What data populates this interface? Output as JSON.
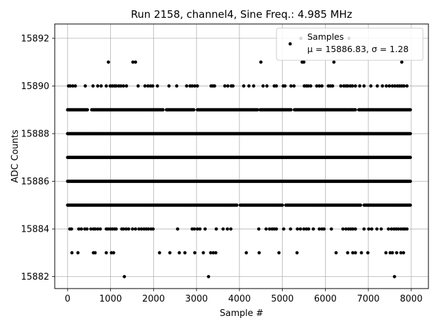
{
  "chart_data": {
    "type": "scatter",
    "title": "Run 2158, channel4, Sine Freq.: 4.985 MHz",
    "xlabel": "Sample #",
    "ylabel": "ADC Counts",
    "xlim": [
      -300,
      8400
    ],
    "ylim": [
      15881.5,
      15892.6
    ],
    "xticks": [
      0,
      1000,
      2000,
      3000,
      4000,
      5000,
      6000,
      7000,
      8000
    ],
    "yticks": [
      15882,
      15884,
      15886,
      15888,
      15890,
      15892
    ],
    "grid": true,
    "legend": {
      "placement": "top-right",
      "entries": [
        "Samples",
        "μ = 15886.83, σ = 1.28"
      ]
    },
    "series": [
      {
        "name": "Samples",
        "marker_color": "#000000",
        "levels": [
          {
            "y": 15892,
            "x": [
              5430,
              6550
            ]
          },
          {
            "y": 15891,
            "x": [
              950,
              1520,
              1580,
              4500,
              5460,
              5500,
              6200,
              7780
            ]
          },
          {
            "y": 15890,
            "x": [
              20,
              60,
              120,
              180,
              410,
              590,
              700,
              780,
              900,
              990,
              1040,
              1090,
              1130,
              1190,
              1240,
              1300,
              1370,
              1640,
              1800,
              1870,
              1930,
              1980,
              2090,
              2360,
              2540,
              2770,
              2850,
              2900,
              2960,
              3020,
              3340,
              3380,
              3420,
              3660,
              3730,
              3810,
              3850,
              4100,
              4220,
              4330,
              4550,
              4640,
              4810,
              4860,
              5020,
              5060,
              5200,
              5270,
              5510,
              5560,
              5600,
              5660,
              5800,
              5860,
              5920,
              6070,
              6120,
              6170,
              6360,
              6430,
              6480,
              6520,
              6580,
              6630,
              6700,
              6800,
              6900,
              7060,
              7210,
              7330,
              7420,
              7490,
              7560,
              7620,
              7680,
              7730,
              7780,
              7830,
              7900
            ]
          },
          {
            "y": 15884,
            "x": [
              50,
              90,
              260,
              320,
              400,
              450,
              540,
              600,
              640,
              700,
              760,
              900,
              940,
              990,
              1040,
              1090,
              1130,
              1260,
              1300,
              1360,
              1420,
              1510,
              1580,
              1660,
              1720,
              1780,
              1830,
              1880,
              1940,
              1990,
              2560,
              2900,
              2950,
              3020,
              3080,
              3200,
              3460,
              3620,
              3720,
              3800,
              4450,
              4620,
              4700,
              4760,
              4810,
              4860,
              5030,
              5190,
              5350,
              5420,
              5500,
              5560,
              5610,
              5720,
              5860,
              5920,
              5970,
              6140,
              6410,
              6480,
              6540,
              6590,
              6640,
              6700,
              6900,
              7010,
              7080,
              7200,
              7300,
              7470,
              7540,
              7600,
              7650,
              7700,
              7760,
              7810,
              7850,
              7900
            ]
          },
          {
            "y": 15883,
            "x": [
              100,
              240,
              600,
              640,
              900,
              1020,
              1070,
              2140,
              2380,
              2600,
              2730,
              2960,
              3160,
              3330,
              3390,
              3450,
              4160,
              4460,
              4920,
              5340,
              6250,
              6520,
              6640,
              6700,
              6840,
              6990,
              7410,
              7510,
              7560,
              7660,
              7760,
              7820
            ]
          },
          {
            "y": 15882,
            "x": [
              1320,
              3280,
              7610
            ]
          }
        ],
        "dense_levels": [
          {
            "y": 15889,
            "x_range": [
              0,
              7999
            ],
            "gaps": [
              [
                470,
                550
              ],
              [
                2230,
                2290
              ],
              [
                2950,
                3000
              ],
              [
                4430,
                4470
              ],
              [
                5220,
                5270
              ],
              [
                6720,
                6770
              ]
            ]
          },
          {
            "y": 15888,
            "x_range": [
              0,
              7999
            ],
            "gaps": []
          },
          {
            "y": 15887,
            "x_range": [
              0,
              7999
            ],
            "gaps": []
          },
          {
            "y": 15886,
            "x_range": [
              0,
              7999
            ],
            "gaps": []
          },
          {
            "y": 15885,
            "x_range": [
              0,
              7999
            ],
            "gaps": [
              [
                3960,
                4000
              ],
              [
                5010,
                5060
              ],
              [
                6830,
                6880
              ]
            ]
          }
        ]
      }
    ]
  }
}
